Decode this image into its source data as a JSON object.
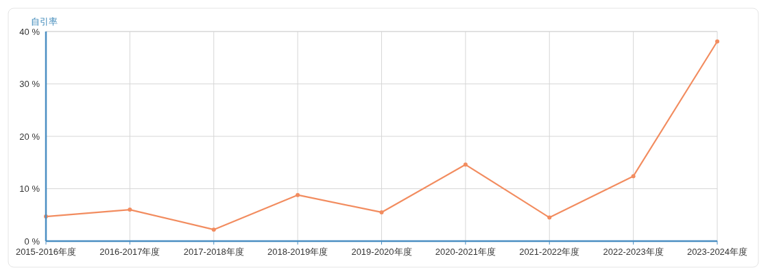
{
  "chart_data": {
    "type": "line",
    "ylabel": "自引率",
    "categories": [
      "2015-2016年度",
      "2016-2017年度",
      "2017-2018年度",
      "2018-2019年度",
      "2019-2020年度",
      "2020-2021年度",
      "2021-2022年度",
      "2022-2023年度",
      "2023-2024年度"
    ],
    "series": [
      {
        "color": "#f28c5f",
        "values": [
          4.7,
          6.0,
          2.2,
          8.8,
          5.5,
          14.6,
          4.5,
          12.4,
          38.1
        ]
      }
    ],
    "ylim": [
      0,
      40
    ],
    "yticks": [
      {
        "value": 0,
        "label": "0 %"
      },
      {
        "value": 10,
        "label": "10 %"
      },
      {
        "value": 20,
        "label": "20 %"
      },
      {
        "value": 30,
        "label": "30 %"
      },
      {
        "value": 40,
        "label": "40 %"
      }
    ],
    "grid": true,
    "marker": "circle",
    "line_style": "solid"
  }
}
